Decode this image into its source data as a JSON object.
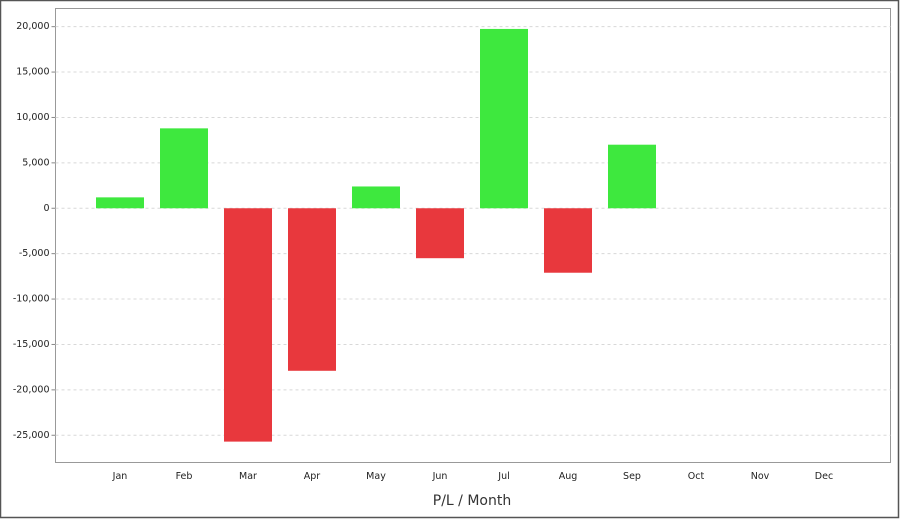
{
  "chart_data": {
    "type": "bar",
    "x_label": "P/L / Month",
    "categories": [
      "Jan",
      "Feb",
      "Mar",
      "Apr",
      "May",
      "Jun",
      "Jul",
      "Aug",
      "Sep",
      "Oct",
      "Nov",
      "Dec"
    ],
    "values": [
      1200,
      8800,
      -25700,
      -17900,
      2400,
      -5500,
      19750,
      -7100,
      7000,
      null,
      null,
      null
    ],
    "positive_color": "#3ee83e",
    "negative_color": "#e8383d",
    "ylim": [
      -28000,
      22000
    ],
    "yticks": [
      {
        "value": -25000,
        "label": "-25,000"
      },
      {
        "value": -20000,
        "label": "-20,000"
      },
      {
        "value": -15000,
        "label": "-15,000"
      },
      {
        "value": -10000,
        "label": "-10,000"
      },
      {
        "value": -5000,
        "label": "-5,000"
      },
      0,
      {
        "value": 5000,
        "label": "5,000"
      },
      {
        "value": 10000,
        "label": "10,000"
      },
      {
        "value": 15000,
        "label": "15,000"
      },
      {
        "value": 20000,
        "label": "20,000"
      }
    ],
    "grid": true
  }
}
